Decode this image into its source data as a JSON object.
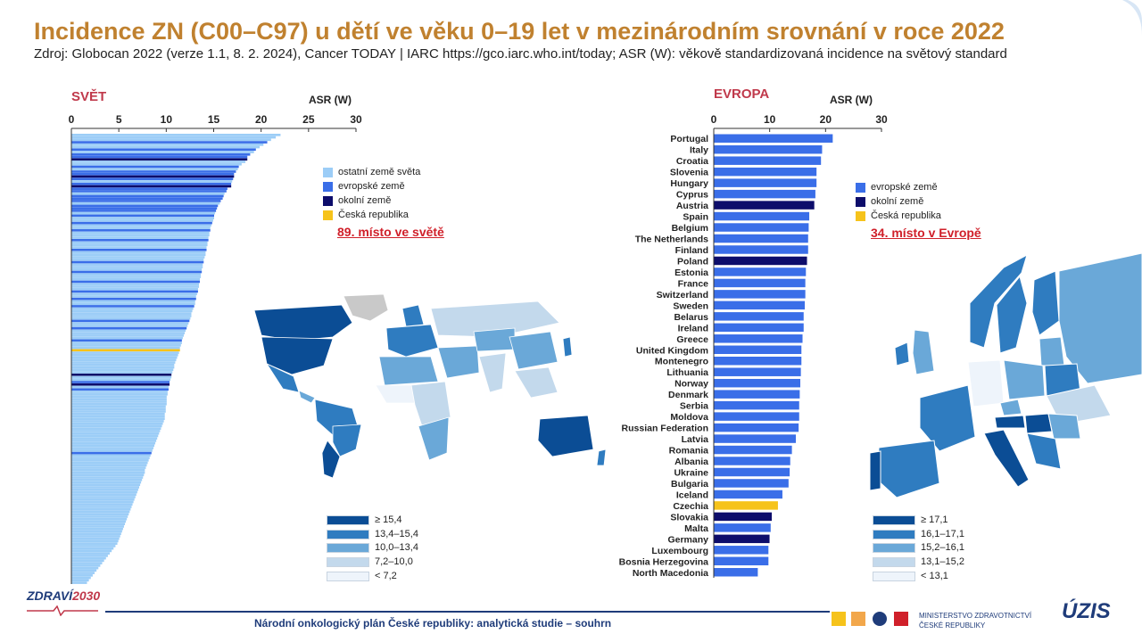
{
  "title": "Incidence ZN (C00–C97) u dětí ve věku 0–19 let v mezinárodním srovnání v roce 2022",
  "subtitle": "Zdroj: Globocan 2022 (verze 1.1, 8. 2. 2024), Cancer TODAY | IARC https://gco.iarc.who.int/today; ASR (W): věkově standardizovaná incidence na světový standard",
  "colors": {
    "title": "#c0812f",
    "other_world": "#9ccdf7",
    "european": "#3a6ee8",
    "neighbour": "#0d0d6b",
    "czech": "#f6c31b",
    "section_label": "#c0394b",
    "rank_note": "#d0202a"
  },
  "world": {
    "section_label": "SVĚT",
    "axis_title": "ASR (W)",
    "rank_note": "89. místo ve světě",
    "legend": [
      {
        "label": "ostatní země světa",
        "color": "#9ccdf7"
      },
      {
        "label": "evropské země",
        "color": "#3a6ee8"
      },
      {
        "label": "okolní země",
        "color": "#0d0d6b"
      },
      {
        "label": "Česká republika",
        "color": "#f6c31b"
      }
    ],
    "map_scale": [
      {
        "label": "≥ 15,4",
        "color": "#0b4d95"
      },
      {
        "label": "13,4–15,4",
        "color": "#2f7cc0"
      },
      {
        "label": "10,0–13,4",
        "color": "#6aa8d8"
      },
      {
        "label": "7,2–10,0",
        "color": "#c3d9ec"
      },
      {
        "label": "< 7,2",
        "color": "#eef4fb"
      }
    ]
  },
  "europe": {
    "section_label": "EVROPA",
    "axis_title": "ASR (W)",
    "rank_note": "34. místo v Evropě",
    "legend": [
      {
        "label": "evropské země",
        "color": "#3a6ee8"
      },
      {
        "label": "okolní země",
        "color": "#0d0d6b"
      },
      {
        "label": "Česká republika",
        "color": "#f6c31b"
      }
    ],
    "map_scale": [
      {
        "label": "≥ 17,1",
        "color": "#0b4d95"
      },
      {
        "label": "16,1–17,1",
        "color": "#2f7cc0"
      },
      {
        "label": "15,2–16,1",
        "color": "#6aa8d8"
      },
      {
        "label": "13,1–15,2",
        "color": "#c3d9ec"
      },
      {
        "label": "< 13,1",
        "color": "#eef4fb"
      }
    ]
  },
  "chart_data": [
    {
      "type": "bar",
      "orientation": "horizontal",
      "section": "SVĚT",
      "xlabel": "ASR (W)",
      "xlim": [
        0,
        30
      ],
      "xticks": [
        0,
        5,
        10,
        15,
        20,
        25,
        30
      ],
      "highlighted_rank": 89,
      "values": [
        22.0,
        21.5,
        21.0,
        20.6,
        20.2,
        19.8,
        19.4,
        19.2,
        18.8,
        18.5,
        18.5,
        18.3,
        17.9,
        17.6,
        17.5,
        17.3,
        17.1,
        17.1,
        17.0,
        16.9,
        16.8,
        16.8,
        16.4,
        16.3,
        16.1,
        16.0,
        15.9,
        15.7,
        15.6,
        15.4,
        15.3,
        15.2,
        15.1,
        15.0,
        15.0,
        14.9,
        14.8,
        14.7,
        14.6,
        14.6,
        14.5,
        14.5,
        14.4,
        14.4,
        14.3,
        14.3,
        14.2,
        14.2,
        14.1,
        14.1,
        14.0,
        13.9,
        13.9,
        13.8,
        13.8,
        13.7,
        13.7,
        13.6,
        13.6,
        13.5,
        13.5,
        13.4,
        13.4,
        13.3,
        13.3,
        13.2,
        13.1,
        13.1,
        13.0,
        13.0,
        12.9,
        12.8,
        12.7,
        12.6,
        12.6,
        12.5,
        12.4,
        12.3,
        12.2,
        12.1,
        12.0,
        11.9,
        11.8,
        11.7,
        11.6,
        11.6,
        11.5,
        11.4,
        11.4,
        11.3,
        11.2,
        11.1,
        11.0,
        10.9,
        10.8,
        10.8,
        10.7,
        10.6,
        10.5,
        10.5,
        10.4,
        10.3,
        10.3,
        10.2,
        10.2,
        10.1,
        10.1,
        10.0,
        10.0,
        10.0,
        10.0,
        9.9,
        9.9,
        9.9,
        9.8,
        9.8,
        9.8,
        9.7,
        9.6,
        9.5,
        9.4,
        9.3,
        9.2,
        9.1,
        9.0,
        8.9,
        8.8,
        8.7,
        8.6,
        8.5,
        8.4,
        8.3,
        8.2,
        8.1,
        8.0,
        7.9,
        7.8,
        7.7,
        7.7,
        7.6,
        7.5,
        7.4,
        7.3,
        7.2,
        7.1,
        7.0,
        6.9,
        6.8,
        6.7,
        6.6,
        6.5,
        6.4,
        6.3,
        6.2,
        6.1,
        6.0,
        5.9,
        5.8,
        5.7,
        5.6,
        5.5,
        5.4,
        5.3,
        5.2,
        5.1,
        5.0,
        4.9,
        4.8,
        4.6,
        4.4,
        4.2,
        4.0,
        3.8,
        3.6,
        3.4,
        3.2,
        3.0,
        2.8,
        2.6,
        2.4,
        2.2,
        2.0,
        1.8,
        1.6
      ],
      "groups": {
        "european": [
          3,
          6,
          8,
          9,
          13,
          15,
          16,
          18,
          20,
          21,
          22,
          23,
          25,
          26,
          27,
          29,
          30,
          31,
          33,
          36,
          39,
          43,
          47,
          52,
          56,
          60,
          64,
          67,
          70,
          76,
          79,
          84,
          101,
          104,
          130
        ],
        "neighbour": [
          10,
          17,
          21,
          98,
          102
        ],
        "czech": [
          88
        ]
      }
    },
    {
      "type": "bar",
      "orientation": "horizontal",
      "section": "EVROPA",
      "xlabel": "ASR (W)",
      "xlim": [
        0,
        30
      ],
      "xticks": [
        0,
        10,
        20,
        30
      ],
      "highlighted_rank": 34,
      "categories": [
        "Portugal",
        "Italy",
        "Croatia",
        "Slovenia",
        "Hungary",
        "Cyprus",
        "Austria",
        "Spain",
        "Belgium",
        "The Netherlands",
        "Finland",
        "Poland",
        "Estonia",
        "France",
        "Switzerland",
        "Sweden",
        "Belarus",
        "Ireland",
        "Greece",
        "United Kingdom",
        "Montenegro",
        "Lithuania",
        "Norway",
        "Denmark",
        "Serbia",
        "Moldova",
        "Russian Federation",
        "Latvia",
        "Romania",
        "Albania",
        "Ukraine",
        "Bulgaria",
        "Iceland",
        "Czechia",
        "Slovakia",
        "Malta",
        "Germany",
        "Luxembourg",
        "Bosnia Herzegovina",
        "North Macedonia"
      ],
      "values": [
        21.2,
        19.3,
        19.1,
        18.3,
        18.3,
        18.1,
        17.9,
        17.0,
        16.9,
        16.8,
        16.8,
        16.6,
        16.4,
        16.3,
        16.3,
        16.2,
        16.0,
        16.0,
        15.8,
        15.6,
        15.6,
        15.5,
        15.4,
        15.3,
        15.2,
        15.2,
        15.1,
        14.6,
        13.9,
        13.6,
        13.5,
        13.3,
        12.2,
        11.4,
        10.3,
        10.1,
        9.9,
        9.7,
        9.7,
        7.8
      ],
      "groups": {
        "neighbour": [
          "Austria",
          "Poland",
          "Slovakia",
          "Germany"
        ],
        "czech": [
          "Czechia"
        ]
      }
    }
  ],
  "footer": {
    "text": "Národní onkologický plán České republiky: analytická studie – souhrn",
    "logo_left_a": "ZDRAVÍ",
    "logo_left_b": "2030",
    "logo_mz_line1": "MINISTERSTVO ZDRAVOTNICTVÍ",
    "logo_mz_line2": "ČESKÉ REPUBLIKY",
    "logo_right": "ÚZIS"
  }
}
